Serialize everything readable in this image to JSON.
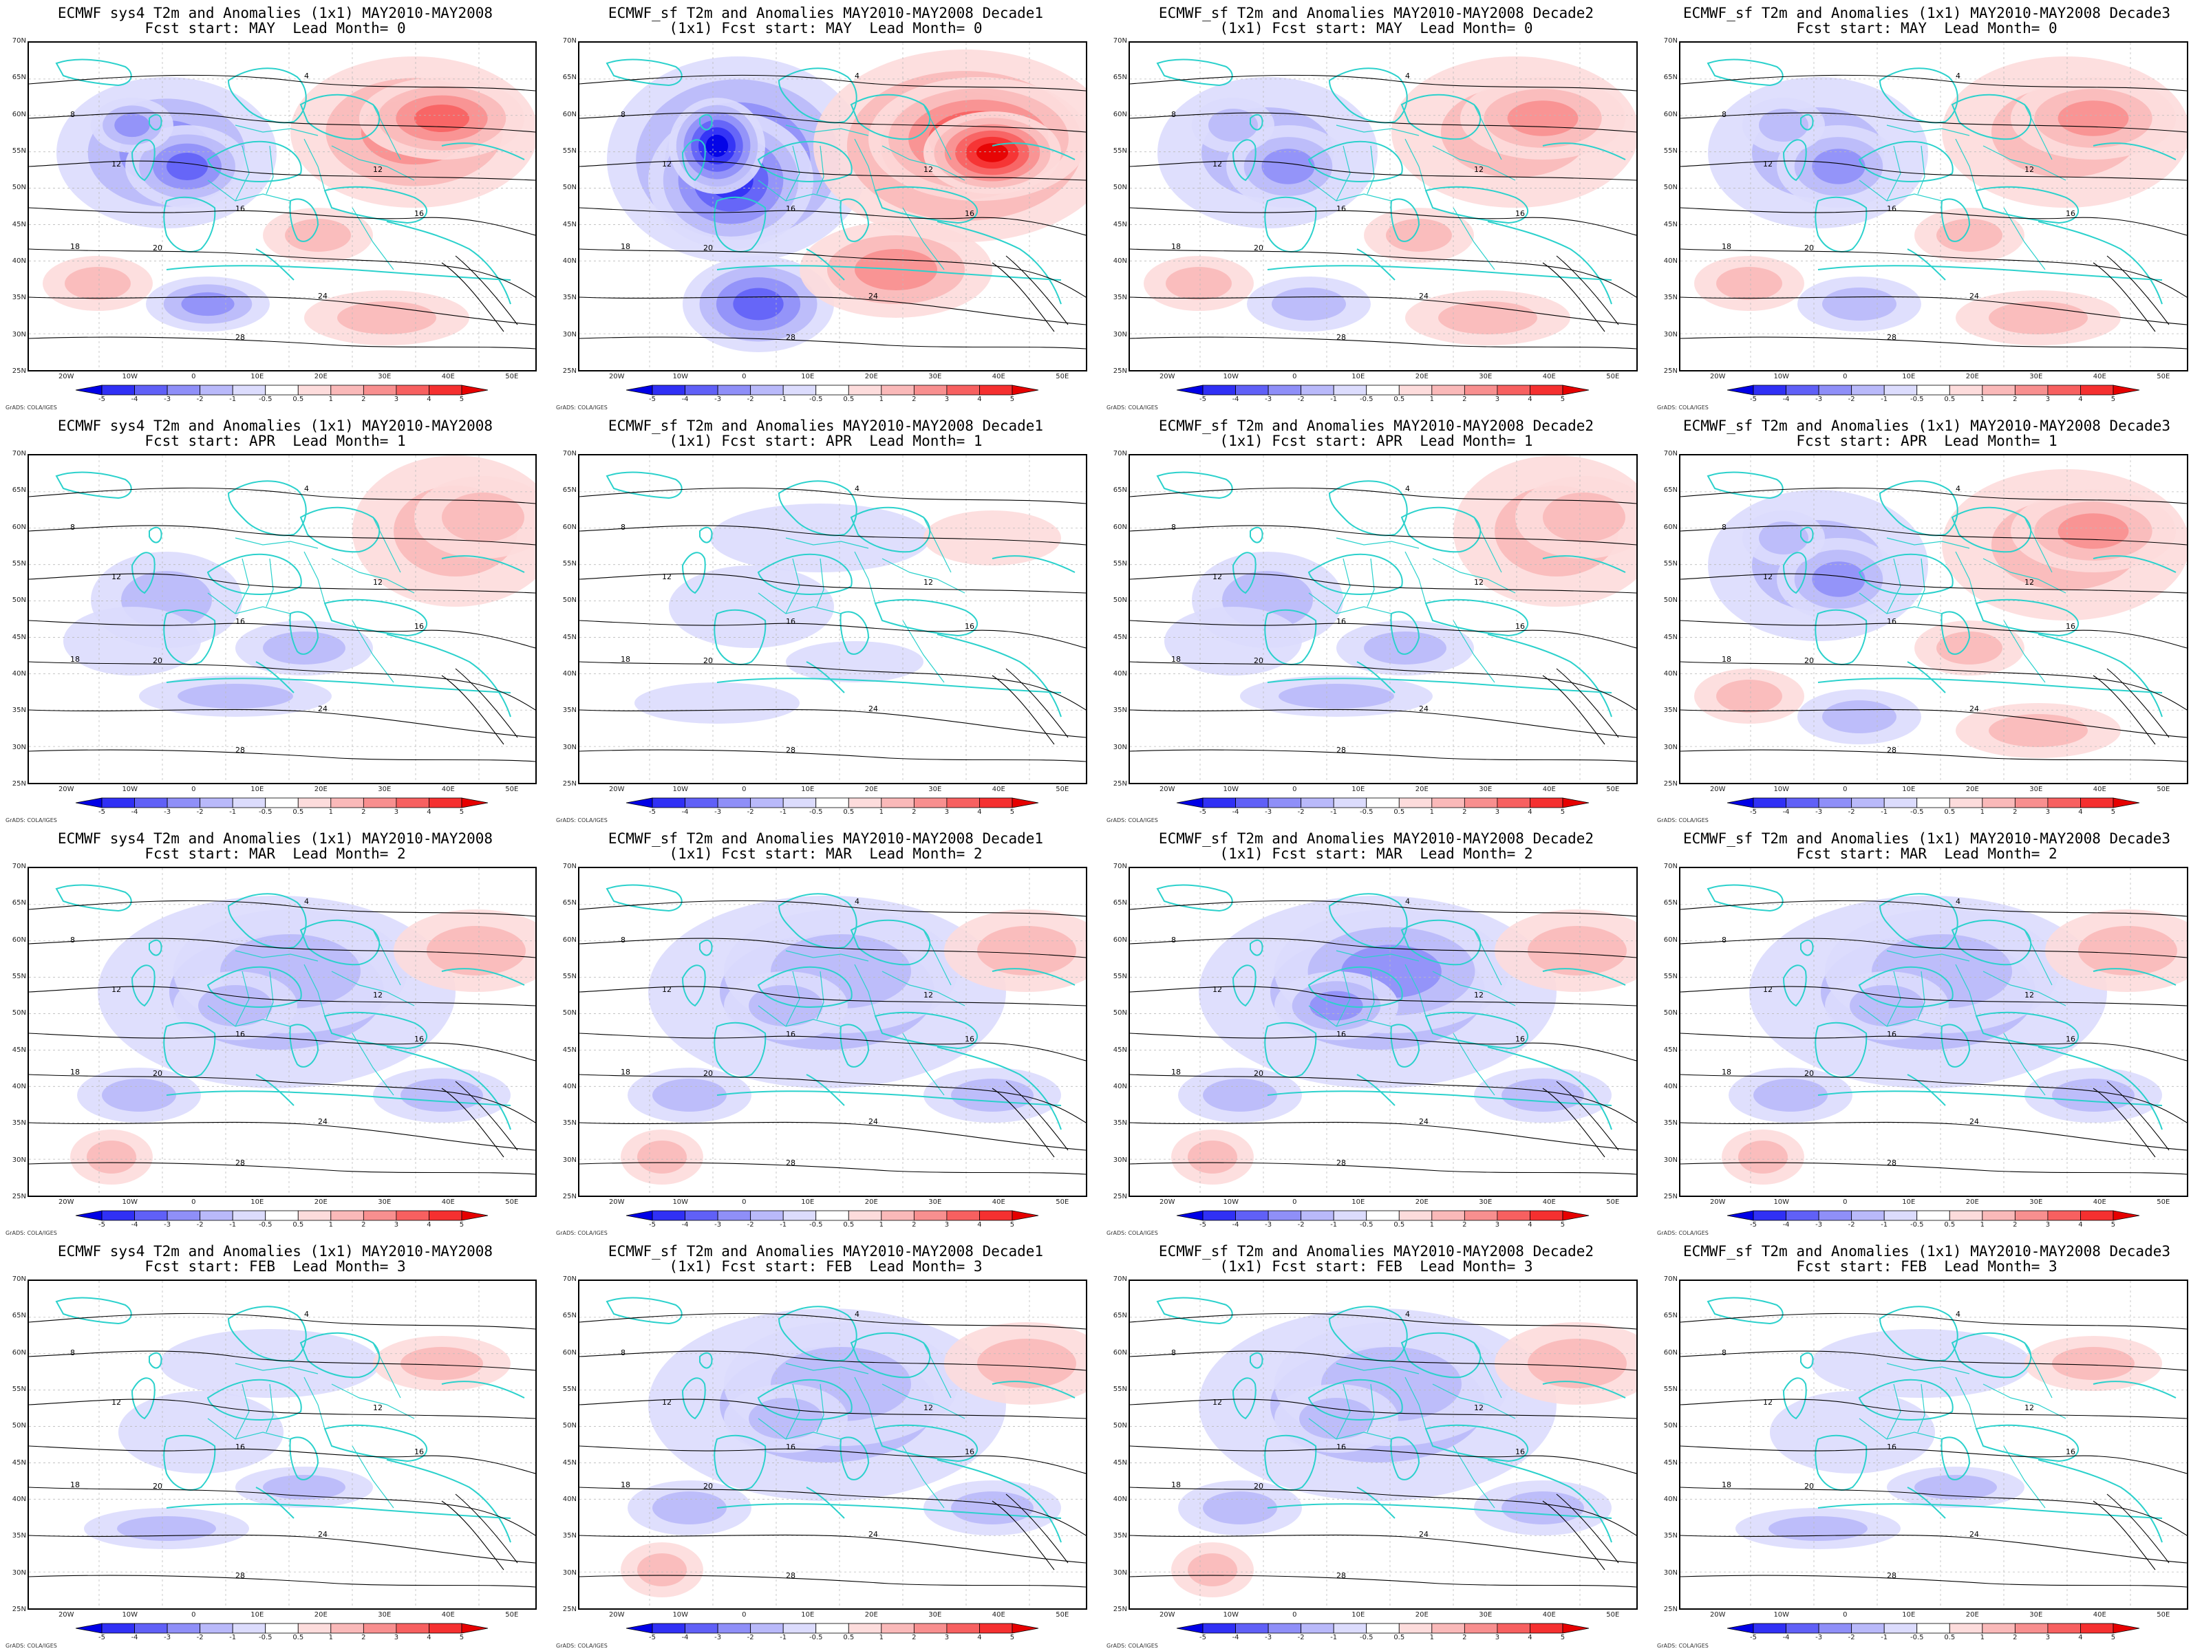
{
  "credit": "GrADS: COLA/IGES",
  "lat_labels": [
    "70N",
    "65N",
    "60N",
    "55N",
    "50N",
    "45N",
    "40N",
    "35N",
    "30N",
    "25N"
  ],
  "lon_labels": [
    "20W",
    "10W",
    "0",
    "10E",
    "20E",
    "30E",
    "40E",
    "50E"
  ],
  "colorbar_ticks": [
    "-5",
    "-4",
    "-3",
    "-2",
    "-1",
    "-0.5",
    "0.5",
    "1",
    "2",
    "3",
    "4",
    "5"
  ],
  "colorbar_colors": [
    "#0000e6",
    "#3030f5",
    "#6060f7",
    "#8f8ff8",
    "#b9b9fa",
    "#dcdcfd",
    "#ffffff",
    "#fddcdc",
    "#fab9b9",
    "#f88f8f",
    "#f76060",
    "#f53030",
    "#e60000"
  ],
  "colors": {
    "coast": "#2bd1cc",
    "contour": "#000000",
    "grid": "#bbbbbb"
  },
  "panels": [
    {
      "title1": "ECMWF sys4 T2m and Anomalies (1x1) MAY2010-MAY2008",
      "title2": "Fcst start: MAY  Lead Month= 0",
      "pattern": "mixed",
      "intensity": 0.7
    },
    {
      "title1": "ECMWF_sf T2m and Anomalies MAY2010-MAY2008 Decade1",
      "title2": "(1x1) Fcst start: MAY  Lead Month= 0",
      "pattern": "strong",
      "intensity": 1.0
    },
    {
      "title1": "ECMWF_sf T2m and Anomalies MAY2010-MAY2008 Decade2",
      "title2": "(1x1) Fcst start: MAY  Lead Month= 0",
      "pattern": "mixed",
      "intensity": 0.55
    },
    {
      "title1": "ECMWF_sf T2m and Anomalies (1x1) MAY2010-MAY2008 Decade3",
      "title2": "Fcst start: MAY  Lead Month= 0",
      "pattern": "mixed",
      "intensity": 0.5
    },
    {
      "title1": "ECMWF sys4 T2m and Anomalies (1x1) MAY2010-MAY2008",
      "title2": "Fcst start: APR  Lead Month= 1",
      "pattern": "east-warm",
      "intensity": 0.45
    },
    {
      "title1": "ECMWF_sf T2m and Anomalies MAY2010-MAY2008 Decade1",
      "title2": "(1x1) Fcst start: APR  Lead Month= 1",
      "pattern": "weak",
      "intensity": 0.35
    },
    {
      "title1": "ECMWF_sf T2m and Anomalies MAY2010-MAY2008 Decade2",
      "title2": "(1x1) Fcst start: APR  Lead Month= 1",
      "pattern": "east-warm",
      "intensity": 0.55
    },
    {
      "title1": "ECMWF_sf T2m and Anomalies (1x1) MAY2010-MAY2008 Decade3",
      "title2": "Fcst start: APR  Lead Month= 1",
      "pattern": "mixed",
      "intensity": 0.45
    },
    {
      "title1": "ECMWF sys4 T2m and Anomalies (1x1) MAY2010-MAY2008",
      "title2": "Fcst start: MAR  Lead Month= 2",
      "pattern": "cold",
      "intensity": 0.55
    },
    {
      "title1": "ECMWF_sf T2m and Anomalies MAY2010-MAY2008 Decade1",
      "title2": "(1x1) Fcst start: MAR  Lead Month= 2",
      "pattern": "cold",
      "intensity": 0.5
    },
    {
      "title1": "ECMWF_sf T2m and Anomalies MAY2010-MAY2008 Decade2",
      "title2": "(1x1) Fcst start: MAR  Lead Month= 2",
      "pattern": "cold",
      "intensity": 0.6
    },
    {
      "title1": "ECMWF_sf T2m and Anomalies (1x1) MAY2010-MAY2008 Decade3",
      "title2": "Fcst start: MAR  Lead Month= 2",
      "pattern": "cold",
      "intensity": 0.5
    },
    {
      "title1": "ECMWF sys4 T2m and Anomalies (1x1) MAY2010-MAY2008",
      "title2": "Fcst start: FEB  Lead Month= 3",
      "pattern": "weak",
      "intensity": 0.4
    },
    {
      "title1": "ECMWF_sf T2m and Anomalies MAY2010-MAY2008 Decade1",
      "title2": "(1x1) Fcst start: FEB  Lead Month= 3",
      "pattern": "cold",
      "intensity": 0.45
    },
    {
      "title1": "ECMWF_sf T2m and Anomalies MAY2010-MAY2008 Decade2",
      "title2": "(1x1) Fcst start: FEB  Lead Month= 3",
      "pattern": "cold",
      "intensity": 0.45
    },
    {
      "title1": "ECMWF_sf T2m and Anomalies (1x1) MAY2010-MAY2008 Decade3",
      "title2": "Fcst start: FEB  Lead Month= 3",
      "pattern": "weak",
      "intensity": 0.4
    }
  ]
}
